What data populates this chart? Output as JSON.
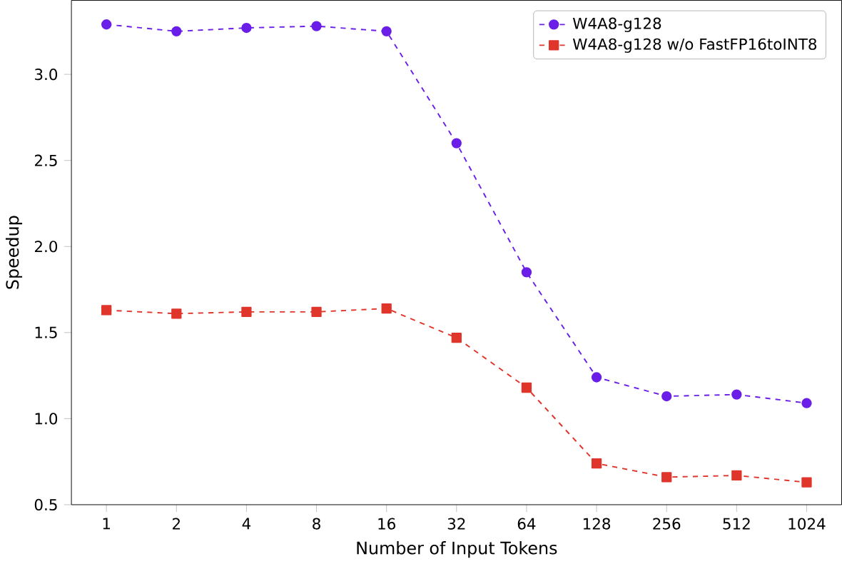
{
  "chart_data": {
    "type": "line",
    "xlabel": "Number of Input Tokens",
    "ylabel": "Speedup",
    "categories": [
      "1",
      "2",
      "4",
      "8",
      "16",
      "32",
      "64",
      "128",
      "256",
      "512",
      "1024"
    ],
    "series": [
      {
        "name": "W4A8-g128",
        "color": "#6a1ee8",
        "marker": "circle",
        "values": [
          3.29,
          3.25,
          3.27,
          3.28,
          3.25,
          2.6,
          1.85,
          1.24,
          1.13,
          1.14,
          1.09
        ]
      },
      {
        "name": "W4A8-g128 w/o FastFP16toINT8",
        "color": "#e0352b",
        "marker": "square",
        "values": [
          1.63,
          1.61,
          1.62,
          1.62,
          1.64,
          1.47,
          1.18,
          0.74,
          0.66,
          0.67,
          0.63
        ]
      }
    ],
    "ylim": [
      0.5,
      3.43
    ],
    "yticks": [
      0.5,
      {
        "value": 1,
        "label": "1.0"
      },
      1.5,
      {
        "value": 2,
        "label": "2.0"
      },
      2.5,
      {
        "value": 3,
        "label": "3.0"
      }
    ],
    "line_style": "dashed",
    "grid": false,
    "legend": "top right"
  }
}
